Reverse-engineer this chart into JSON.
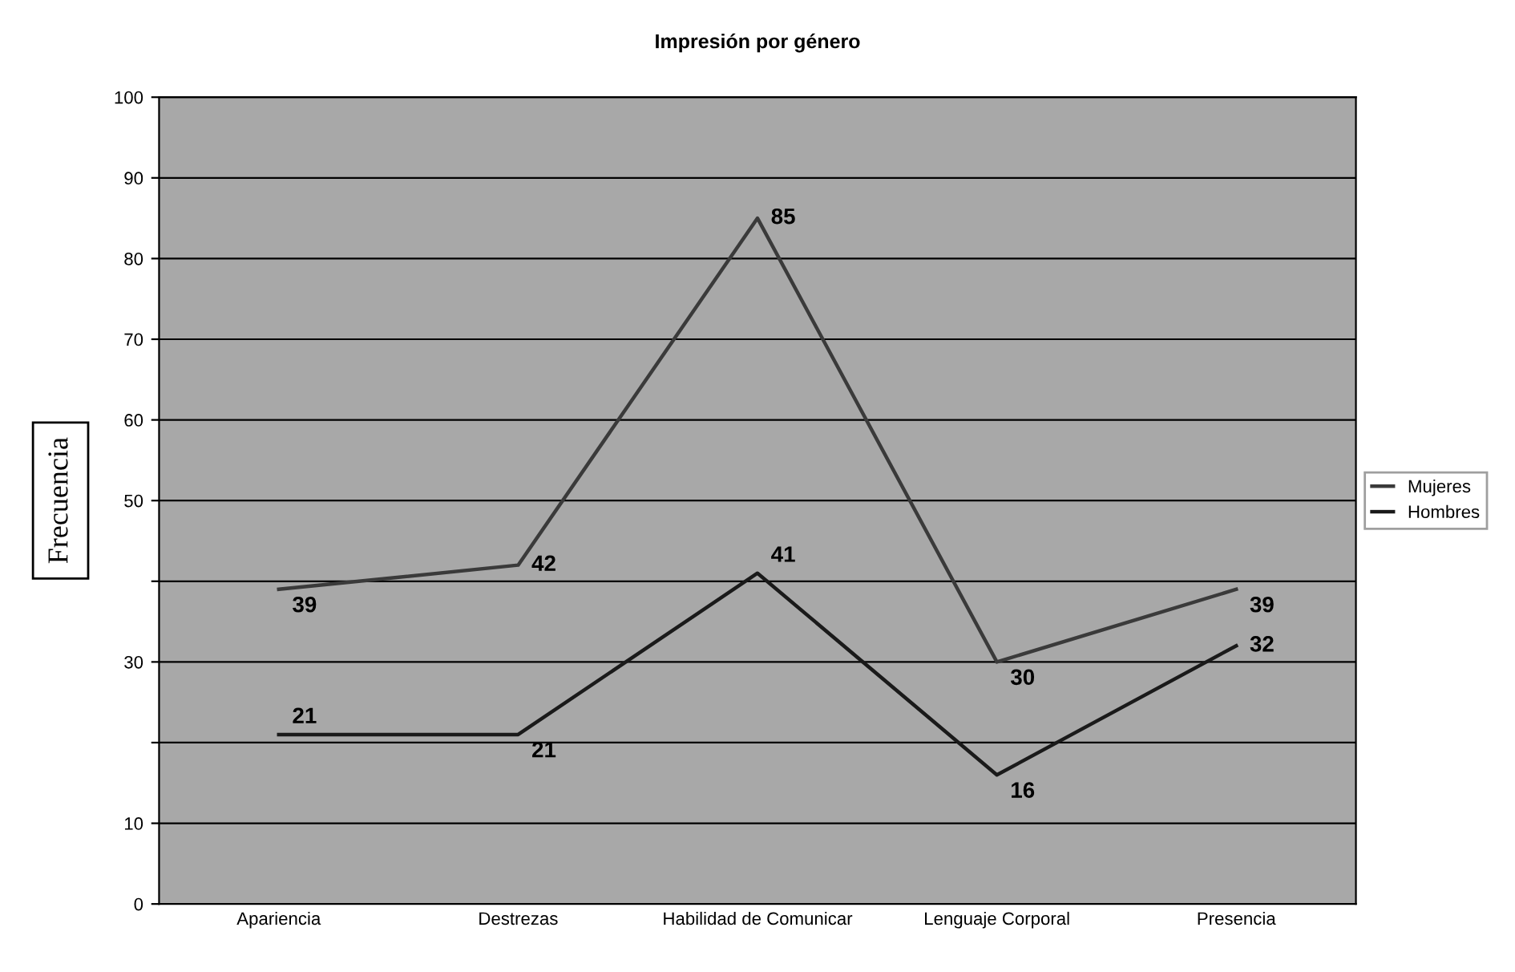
{
  "chart_data": {
    "type": "line",
    "title": "Impresión por género",
    "ylabel": "Frecuencia",
    "categories": [
      "Apariencia",
      "Destrezas",
      "Habilidad de Comunicar",
      "Lenguaje Corporal",
      "Presencia"
    ],
    "series": [
      {
        "name": "Mujeres",
        "color": "#3a3a3a",
        "values": [
          39,
          42,
          85,
          30,
          39
        ]
      },
      {
        "name": "Hombres",
        "color": "#1a1a1a",
        "values": [
          21,
          21,
          41,
          16,
          32
        ]
      }
    ],
    "ylim": [
      0,
      100
    ],
    "yticks": [
      0,
      10,
      {
        "value": 20,
        "label": null
      },
      30,
      {
        "value": 40,
        "label": null
      },
      50,
      60,
      70,
      80,
      90,
      100
    ],
    "grid": "y",
    "legend": "right",
    "data_labels": true,
    "marker": "none",
    "line_style": "solid"
  }
}
